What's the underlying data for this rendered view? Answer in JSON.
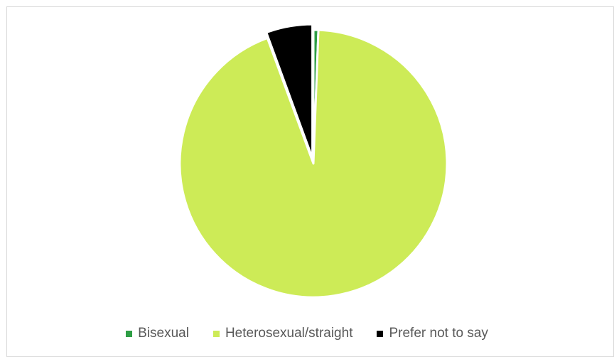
{
  "chart_data": {
    "type": "pie",
    "title": "",
    "categories": [
      "Bisexual",
      "Heterosexual/straight",
      "Prefer not to say"
    ],
    "values": [
      0.6,
      93.8,
      5.6
    ],
    "colors": [
      "#2e9e45",
      "#cdeb57",
      "#000000"
    ],
    "exploded": "Prefer not to say",
    "legend": "bottom"
  }
}
